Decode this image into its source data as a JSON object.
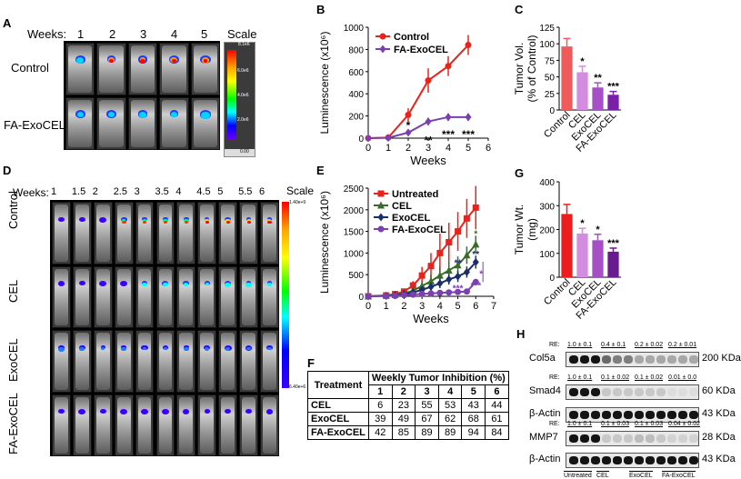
{
  "panel_labels": {
    "a": "A",
    "b": "B",
    "c": "C",
    "d": "D",
    "e": "E",
    "f": "F",
    "g": "G",
    "h": "H"
  },
  "panelA": {
    "weeks_label": "Weeks:",
    "weeks": [
      "1",
      "2",
      "3",
      "4",
      "5"
    ],
    "scale_label": "Scale",
    "scale_ticks": [
      "8.1e6",
      "6.0e6",
      "4.0e6",
      "2.0e6",
      "0.00"
    ],
    "rows": [
      "Control",
      "FA-ExoCEL"
    ]
  },
  "panelD": {
    "weeks_label": "Weeks:",
    "weeks": [
      "1",
      "1.5",
      "2",
      "2.5",
      "3",
      "3.5",
      "4",
      "4.5",
      "5",
      "5.5",
      "6"
    ],
    "scale_label": "Scale",
    "scale_top": "1.40e+9",
    "scale_bottom": "6.40e+6",
    "rows": [
      "Control",
      "CEL",
      "ExoCEL",
      "FA-ExoCEL"
    ]
  },
  "chart_data": [
    {
      "id": "B",
      "type": "line",
      "xlabel": "Weeks",
      "ylabel": "Luminescence (x10⁶)",
      "xlim": [
        0,
        6
      ],
      "ylim": [
        0,
        1000
      ],
      "x_ticks": [
        "0",
        "1",
        "2",
        "3",
        "4",
        "5",
        "6"
      ],
      "y_ticks": [
        "0",
        "200",
        "400",
        "600",
        "800",
        "1000"
      ],
      "x": [
        0,
        1,
        2,
        3,
        4,
        5
      ],
      "series": [
        {
          "name": "Control",
          "color": "#e8231b",
          "marker": "circle",
          "values": [
            0,
            5,
            210,
            520,
            650,
            840
          ],
          "errors": [
            0,
            5,
            60,
            110,
            90,
            90
          ]
        },
        {
          "name": "FA-ExoCEL",
          "color": "#7a3fb0",
          "marker": "diamond",
          "values": [
            0,
            3,
            50,
            150,
            190,
            190
          ],
          "errors": [
            0,
            3,
            15,
            35,
            35,
            35
          ]
        }
      ],
      "annotations": [
        "*",
        "**",
        "***",
        "***"
      ]
    },
    {
      "id": "C",
      "type": "bar",
      "ylabel": "Tumor Vol. (% of Control)",
      "ylim": [
        0,
        125
      ],
      "y_ticks": [
        "0",
        "25",
        "50",
        "75",
        "100",
        "125"
      ],
      "categories": [
        "Control",
        "CEL",
        "ExoCEL",
        "FA-ExoCEL"
      ],
      "values": [
        96,
        57,
        34,
        23
      ],
      "errors": [
        12,
        9,
        7,
        5
      ],
      "colors": [
        "#f15a5a",
        "#d48ce0",
        "#a64fc7",
        "#7a1fa8"
      ],
      "annotations": [
        "",
        "*",
        "**",
        "***"
      ]
    },
    {
      "id": "E",
      "type": "line",
      "xlabel": "Weeks",
      "ylabel": "Luminescence (x10⁶)",
      "xlim": [
        0,
        7
      ],
      "ylim": [
        0,
        2500
      ],
      "x_ticks": [
        "0",
        "1",
        "2",
        "3",
        "4",
        "5",
        "6",
        "7"
      ],
      "y_ticks": [
        "0",
        "500",
        "1000",
        "1500",
        "2000",
        "2500"
      ],
      "x": [
        0,
        1,
        1.5,
        2,
        2.5,
        3,
        3.5,
        4,
        4.5,
        5,
        5.5,
        6
      ],
      "series": [
        {
          "name": "Untreated",
          "color": "#e8231b",
          "marker": "square",
          "values": [
            0,
            20,
            50,
            110,
            250,
            480,
            700,
            1000,
            1250,
            1500,
            1800,
            2050
          ],
          "errors": [
            0,
            10,
            20,
            50,
            100,
            200,
            300,
            450,
            450,
            450,
            450,
            500
          ]
        },
        {
          "name": "CEL",
          "color": "#3a6b2a",
          "marker": "triangle",
          "values": [
            0,
            15,
            35,
            70,
            130,
            240,
            350,
            480,
            600,
            720,
            950,
            1200
          ],
          "errors": [
            0,
            8,
            15,
            30,
            60,
            100,
            150,
            200,
            200,
            200,
            200,
            200
          ]
        },
        {
          "name": "ExoCEL",
          "color": "#1a2e6b",
          "marker": "diamond",
          "values": [
            0,
            10,
            25,
            50,
            90,
            150,
            220,
            300,
            390,
            460,
            560,
            790
          ],
          "errors": [
            0,
            5,
            10,
            20,
            40,
            60,
            90,
            110,
            120,
            130,
            130,
            150
          ]
        },
        {
          "name": "FA-ExoCEL",
          "color": "#7a3fb0",
          "marker": "circle",
          "values": [
            0,
            5,
            10,
            25,
            40,
            55,
            65,
            80,
            90,
            100,
            110,
            330
          ],
          "errors": [
            0,
            3,
            5,
            10,
            15,
            20,
            20,
            25,
            25,
            30,
            30,
            60
          ]
        }
      ],
      "annotations": [
        "*",
        "**",
        "**",
        "*",
        "***",
        "***"
      ]
    },
    {
      "id": "F",
      "type": "table",
      "title": "Weekly Tumor Inhibition (%)",
      "columns": [
        "Treatment",
        "1",
        "2",
        "3",
        "4",
        "5",
        "6"
      ],
      "rows": [
        [
          "CEL",
          "6",
          "23",
          "55",
          "53",
          "43",
          "44"
        ],
        [
          "ExoCEL",
          "39",
          "49",
          "67",
          "62",
          "68",
          "61"
        ],
        [
          "FA-ExoCEL",
          "42",
          "85",
          "89",
          "89",
          "94",
          "84"
        ]
      ]
    },
    {
      "id": "G",
      "type": "bar",
      "ylabel": "Tumor Wt. (mg)",
      "ylim": [
        0,
        400
      ],
      "y_ticks": [
        "0",
        "100",
        "200",
        "300",
        "400"
      ],
      "categories": [
        "Control",
        "CEL",
        "ExoCEL",
        "FA-ExoCEL"
      ],
      "values": [
        265,
        183,
        155,
        107
      ],
      "errors": [
        40,
        22,
        25,
        15
      ],
      "colors": [
        "#ee1c1c",
        "#d48ce0",
        "#a64fc7",
        "#6a1a8f"
      ],
      "annotations": [
        "",
        "*",
        "*",
        "***"
      ]
    }
  ],
  "panelH": {
    "re_label": "RE:",
    "blots": [
      {
        "name": "Col5a",
        "kda": "200 KDa",
        "re": [
          "1.0 ± 0.1",
          "0.4 ± 0.1",
          "0.2 ± 0.02",
          "0.2 ± 0.01"
        ]
      },
      {
        "name": "Smad4",
        "kda": "60 KDa",
        "re": [
          "1.0 ± 0.1",
          "0.1 ± 0.02",
          "0.1 ± 0.02",
          "0.01 ± 0.0"
        ]
      },
      {
        "name": "β-Actin",
        "kda": "43 KDa",
        "re": null
      },
      {
        "name": "MMP7",
        "kda": "28 KDa",
        "re": [
          "1.0 ± 0.1",
          "0.1 ± 0.03",
          "0.1 ± 0.03",
          "0.04 ± 0.02"
        ]
      },
      {
        "name": "β-Actin",
        "kda": "43 KDa",
        "re": null
      }
    ],
    "groups": [
      "Untreated",
      "CEL",
      "ExoCEL",
      "FA-ExoCEL"
    ]
  }
}
